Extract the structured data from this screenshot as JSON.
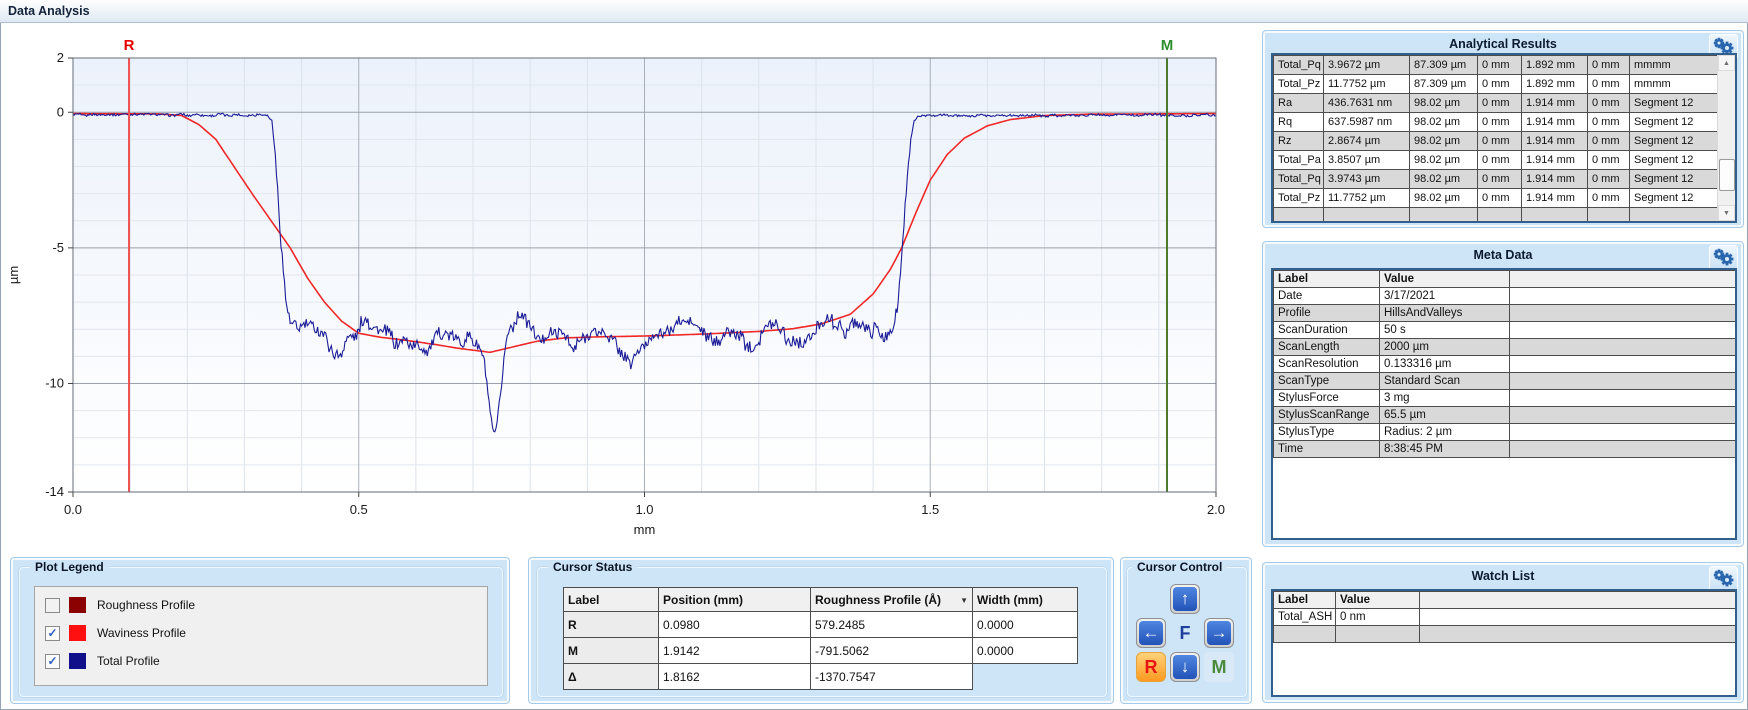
{
  "window": {
    "title": "Data Analysis"
  },
  "colors": {
    "panel_blue": "#cde5f7",
    "alt_row_grey": "#d9d9d9",
    "header_grey": "#f0f0f0",
    "gear_blue": "#2a66ae"
  },
  "icons": {
    "scroll_up": "▲",
    "scroll_down": "▼",
    "dropdown": "▼",
    "checkmark": "✓"
  },
  "chart_data": {
    "type": "line",
    "title": "",
    "xlabel": "mm",
    "ylabel": "µm",
    "xlim": [
      0,
      2
    ],
    "ylim": [
      -14,
      2
    ],
    "x_ticks": [
      0,
      0.5,
      1.0,
      1.5,
      2.0
    ],
    "x_tick_labels": [
      "0.0",
      "0.5",
      "1.0",
      "1.5",
      "2.0"
    ],
    "y_ticks": [
      2,
      0,
      -5,
      -10,
      -14
    ],
    "y_tick_labels": [
      "2",
      "0",
      "-5",
      "-10",
      "-14"
    ],
    "x_minor_step": 0.1,
    "y_minor_step": 1,
    "grid": true,
    "cursors": [
      {
        "name": "R",
        "x": 0.098,
        "line_color": "#ef5454",
        "label_color": "#e80000"
      },
      {
        "name": "M",
        "x": 1.9142,
        "line_color": "#4e7a2e",
        "label_color": "#2f8f2f"
      }
    ],
    "series": [
      {
        "name": "Waviness Profile",
        "color": "#f02828",
        "stroke_width": 1.6,
        "keypoints": [
          [
            0,
            -0.05
          ],
          [
            0.15,
            -0.06
          ],
          [
            0.19,
            -0.12
          ],
          [
            0.22,
            -0.45
          ],
          [
            0.25,
            -1.0
          ],
          [
            0.28,
            -1.95
          ],
          [
            0.315,
            -3.05
          ],
          [
            0.35,
            -4.1
          ],
          [
            0.38,
            -5.0
          ],
          [
            0.41,
            -6.1
          ],
          [
            0.44,
            -7.0
          ],
          [
            0.47,
            -7.7
          ],
          [
            0.5,
            -8.15
          ],
          [
            0.54,
            -8.3
          ],
          [
            0.58,
            -8.4
          ],
          [
            0.63,
            -8.55
          ],
          [
            0.68,
            -8.72
          ],
          [
            0.73,
            -8.85
          ],
          [
            0.77,
            -8.65
          ],
          [
            0.81,
            -8.45
          ],
          [
            0.86,
            -8.32
          ],
          [
            0.92,
            -8.28
          ],
          [
            1.0,
            -8.25
          ],
          [
            1.1,
            -8.18
          ],
          [
            1.2,
            -8.08
          ],
          [
            1.26,
            -7.98
          ],
          [
            1.31,
            -7.8
          ],
          [
            1.36,
            -7.45
          ],
          [
            1.4,
            -6.7
          ],
          [
            1.43,
            -5.8
          ],
          [
            1.45,
            -5.0
          ],
          [
            1.475,
            -3.7
          ],
          [
            1.5,
            -2.5
          ],
          [
            1.53,
            -1.55
          ],
          [
            1.56,
            -0.95
          ],
          [
            1.6,
            -0.5
          ],
          [
            1.64,
            -0.27
          ],
          [
            1.7,
            -0.12
          ],
          [
            1.78,
            -0.07
          ],
          [
            2.0,
            -0.05
          ]
        ]
      },
      {
        "name": "Total Profile",
        "color": "#1c1c96",
        "stroke_width": 1.1,
        "noise": {
          "flat_amplitude": 0.07,
          "bottom_amplitude": 0.38,
          "threshold": -2,
          "step": 0.002
        },
        "keypoints": [
          [
            0,
            -0.1
          ],
          [
            0.34,
            -0.1
          ],
          [
            0.348,
            -0.3
          ],
          [
            0.356,
            -2.0
          ],
          [
            0.364,
            -4.6
          ],
          [
            0.372,
            -6.8
          ],
          [
            0.38,
            -7.8
          ],
          [
            0.39,
            -8.0
          ],
          [
            0.41,
            -7.9
          ],
          [
            0.43,
            -8.2
          ],
          [
            0.45,
            -8.6
          ],
          [
            0.465,
            -8.9
          ],
          [
            0.48,
            -8.4
          ],
          [
            0.5,
            -8.0
          ],
          [
            0.52,
            -7.9
          ],
          [
            0.54,
            -8.3
          ],
          [
            0.56,
            -8.5
          ],
          [
            0.58,
            -8.25
          ],
          [
            0.6,
            -8.2
          ],
          [
            0.62,
            -8.45
          ],
          [
            0.64,
            -8.05
          ],
          [
            0.66,
            -8.3
          ],
          [
            0.68,
            -8.55
          ],
          [
            0.695,
            -8.4
          ],
          [
            0.71,
            -8.5
          ],
          [
            0.72,
            -9.2
          ],
          [
            0.728,
            -10.6
          ],
          [
            0.734,
            -11.5
          ],
          [
            0.741,
            -11.6
          ],
          [
            0.748,
            -10.3
          ],
          [
            0.754,
            -9.0
          ],
          [
            0.762,
            -8.3
          ],
          [
            0.775,
            -7.7
          ],
          [
            0.785,
            -7.5
          ],
          [
            0.8,
            -8.2
          ],
          [
            0.815,
            -8.7
          ],
          [
            0.83,
            -8.5
          ],
          [
            0.845,
            -8.1
          ],
          [
            0.86,
            -8.0
          ],
          [
            0.875,
            -8.35
          ],
          [
            0.89,
            -8.2
          ],
          [
            0.905,
            -8.0
          ],
          [
            0.92,
            -8.15
          ],
          [
            0.935,
            -8.4
          ],
          [
            0.95,
            -8.6
          ],
          [
            0.965,
            -8.9
          ],
          [
            0.975,
            -9.3
          ],
          [
            0.985,
            -8.9
          ],
          [
            1.0,
            -8.5
          ],
          [
            1.015,
            -8.15
          ],
          [
            1.03,
            -7.95
          ],
          [
            1.05,
            -8.2
          ],
          [
            1.07,
            -8.0
          ],
          [
            1.09,
            -8.3
          ],
          [
            1.11,
            -8.55
          ],
          [
            1.13,
            -8.25
          ],
          [
            1.15,
            -8.0
          ],
          [
            1.17,
            -8.3
          ],
          [
            1.19,
            -8.5
          ],
          [
            1.21,
            -8.15
          ],
          [
            1.23,
            -7.85
          ],
          [
            1.25,
            -8.0
          ],
          [
            1.27,
            -8.3
          ],
          [
            1.29,
            -8.05
          ],
          [
            1.31,
            -7.85
          ],
          [
            1.33,
            -8.1
          ],
          [
            1.35,
            -8.4
          ],
          [
            1.37,
            -8.05
          ],
          [
            1.39,
            -7.9
          ],
          [
            1.41,
            -8.1
          ],
          [
            1.425,
            -8.05
          ],
          [
            1.437,
            -7.9
          ],
          [
            1.444,
            -6.8
          ],
          [
            1.452,
            -4.8
          ],
          [
            1.459,
            -2.8
          ],
          [
            1.466,
            -1.0
          ],
          [
            1.472,
            -0.3
          ],
          [
            1.48,
            -0.12
          ],
          [
            2.0,
            -0.1
          ]
        ]
      }
    ]
  },
  "analytical_results": {
    "title": "Analytical Results",
    "rows": [
      [
        "Total_Pq",
        "3.9672 µm",
        "87.309 µm",
        "0 mm",
        "1.892 mm",
        "0 mm",
        "mmmm"
      ],
      [
        "Total_Pz",
        "11.7752 µm",
        "87.309 µm",
        "0 mm",
        "1.892 mm",
        "0 mm",
        "mmmm"
      ],
      [
        "Ra",
        "436.7631 nm",
        "98.02 µm",
        "0 mm",
        "1.914 mm",
        "0 mm",
        "Segment 12"
      ],
      [
        "Rq",
        "637.5987 nm",
        "98.02 µm",
        "0 mm",
        "1.914 mm",
        "0 mm",
        "Segment 12"
      ],
      [
        "Rz",
        "2.8674 µm",
        "98.02 µm",
        "0 mm",
        "1.914 mm",
        "0 mm",
        "Segment 12"
      ],
      [
        "Total_Pa",
        "3.8507 µm",
        "98.02 µm",
        "0 mm",
        "1.914 mm",
        "0 mm",
        "Segment 12"
      ],
      [
        "Total_Pq",
        "3.9743 µm",
        "98.02 µm",
        "0 mm",
        "1.914 mm",
        "0 mm",
        "Segment 12"
      ],
      [
        "Total_Pz",
        "11.7752 µm",
        "98.02 µm",
        "0 mm",
        "1.914 mm",
        "0 mm",
        "Segment 12"
      ]
    ]
  },
  "meta_data": {
    "title": "Meta Data",
    "headers": [
      "Label",
      "Value"
    ],
    "rows": [
      [
        "Date",
        "3/17/2021"
      ],
      [
        "Profile",
        "HillsAndValleys"
      ],
      [
        "ScanDuration",
        "50 s"
      ],
      [
        "ScanLength",
        "2000 µm"
      ],
      [
        "ScanResolution",
        "0.133316 µm"
      ],
      [
        "ScanType",
        "Standard Scan"
      ],
      [
        "StylusForce",
        "3 mg"
      ],
      [
        "StylusScanRange",
        "65.5 µm"
      ],
      [
        "StylusType",
        "Radius: 2 µm"
      ],
      [
        "Time",
        "8:38:45 PM"
      ]
    ]
  },
  "watch_list": {
    "title": "Watch List",
    "headers": [
      "Label",
      "Value"
    ],
    "rows": [
      [
        "Total_ASH",
        "0 nm"
      ]
    ]
  },
  "plot_legend": {
    "title": "Plot Legend",
    "items": [
      {
        "label": "Roughness Profile",
        "checked": false,
        "color": "#8b0000"
      },
      {
        "label": "Waviness Profile",
        "checked": true,
        "color": "#ff1010"
      },
      {
        "label": "Total Profile",
        "checked": true,
        "color": "#10108a"
      }
    ]
  },
  "cursor_status": {
    "title": "Cursor Status",
    "headers": [
      "Label",
      "Position (mm)",
      "Roughness Profile (Å)",
      "Width (mm)"
    ],
    "rows": [
      [
        "R",
        "0.0980",
        "579.2485",
        "0.0000"
      ],
      [
        "M",
        "1.9142",
        "-791.5062",
        "0.0000"
      ],
      [
        "Δ",
        "1.8162",
        "-1370.7547",
        null
      ]
    ]
  },
  "cursor_control": {
    "title": "Cursor Control",
    "buttons": {
      "up": "↑",
      "left": "←",
      "right": "→",
      "down": "↓",
      "focus": "F",
      "r_cursor": "R",
      "m_cursor": "M"
    }
  }
}
